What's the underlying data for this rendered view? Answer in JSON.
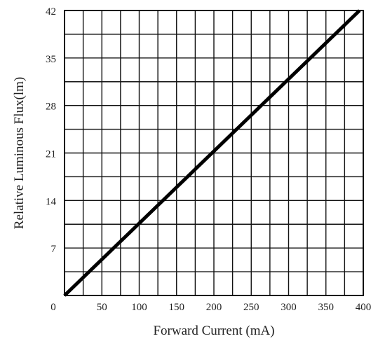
{
  "chart_data": {
    "type": "line",
    "title": "",
    "xlabel": "Forward Current (mA)",
    "ylabel": "Relative Luminous Flux(lm)",
    "xlim": [
      0,
      400
    ],
    "ylim": [
      0,
      42
    ],
    "x_ticks": [
      "0",
      "50",
      "100",
      "150",
      "200",
      "250",
      "300",
      "350",
      "400"
    ],
    "x_tick_values": [
      0,
      50,
      100,
      150,
      200,
      250,
      300,
      350,
      400
    ],
    "y_ticks": [
      "7",
      "14",
      "21",
      "28",
      "35",
      "42"
    ],
    "y_tick_values": [
      7,
      14,
      21,
      28,
      35,
      42
    ],
    "x_grid_step": 25,
    "y_grid_step": 3.5,
    "grid": true,
    "legend": "none",
    "series": [
      {
        "x": [
          0,
          395
        ],
        "y": [
          0,
          42
        ],
        "color": "#000000"
      }
    ]
  }
}
